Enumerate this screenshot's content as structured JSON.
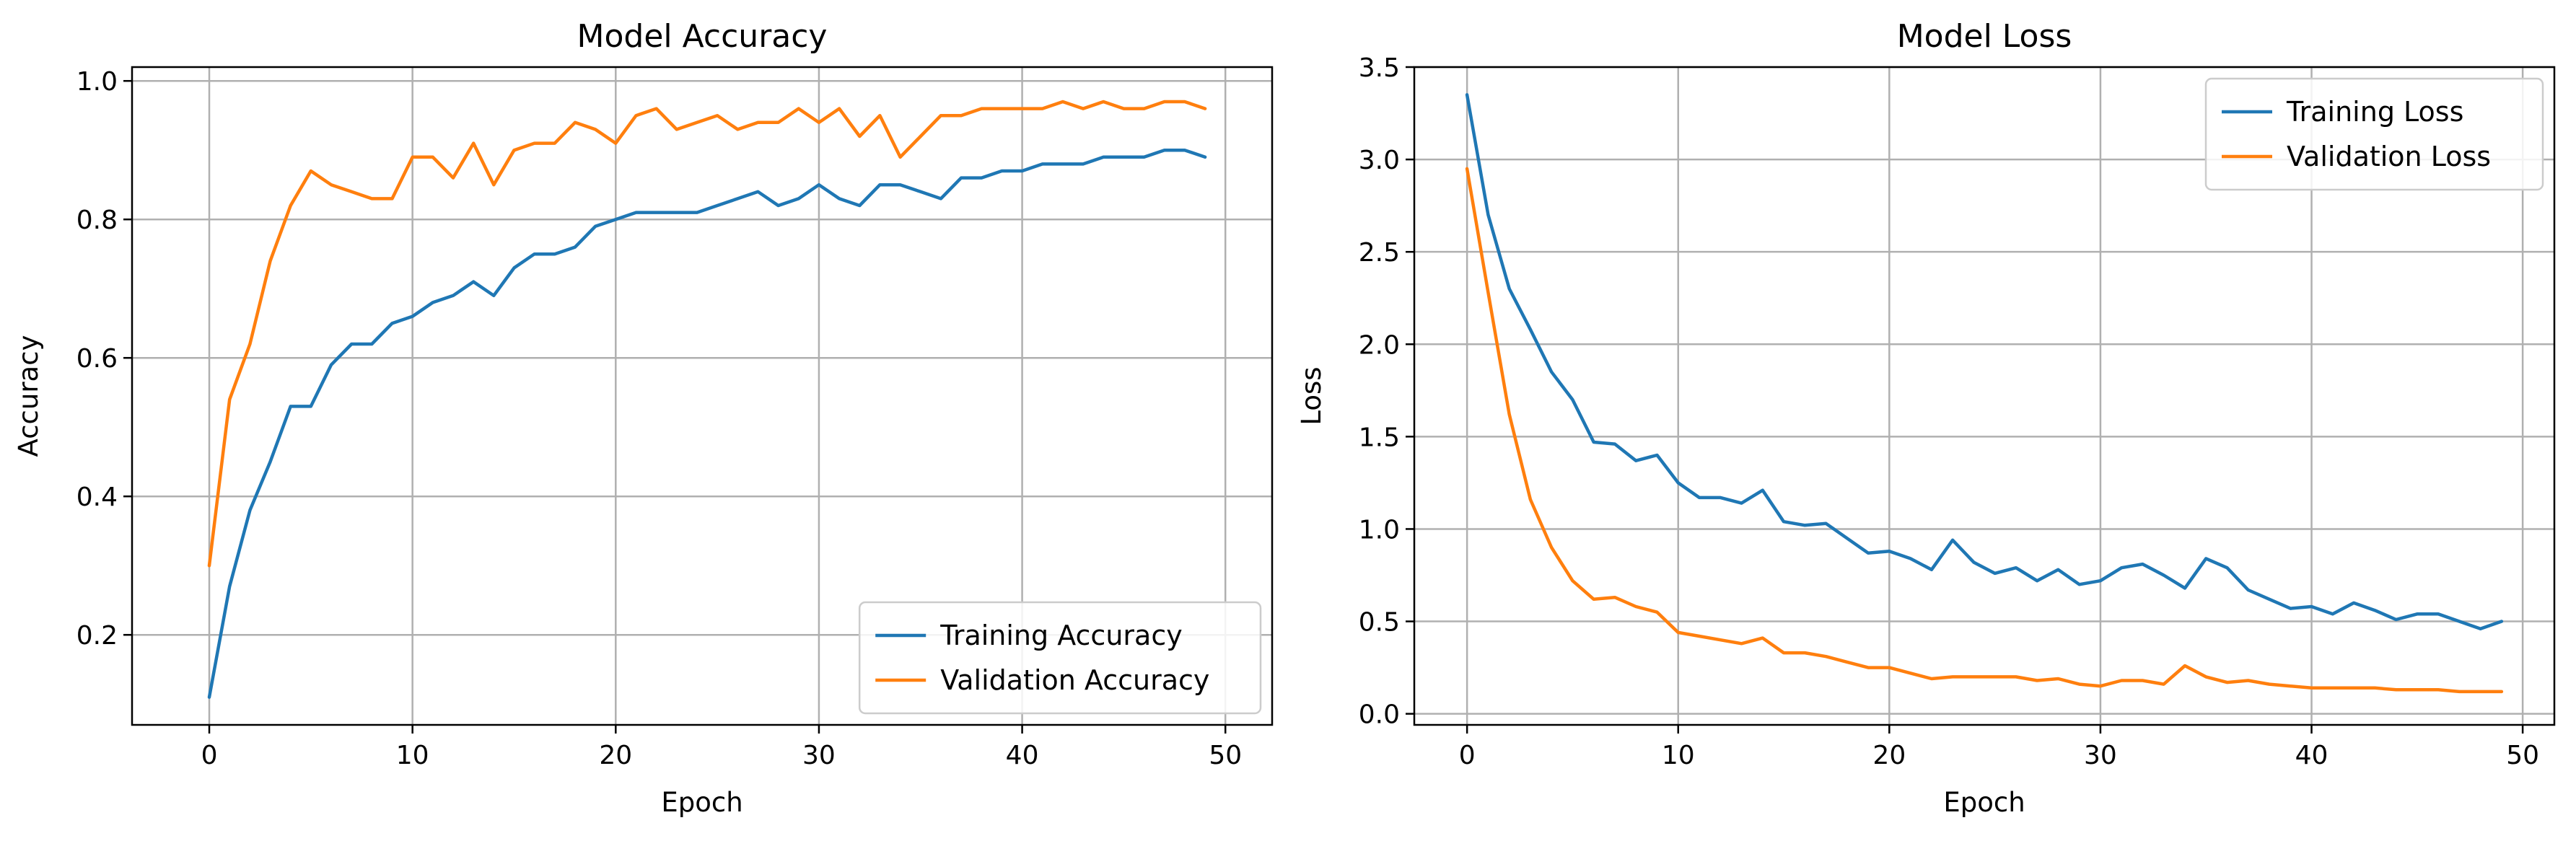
{
  "chart_data": [
    {
      "type": "line",
      "title": "Model Accuracy",
      "xlabel": "Epoch",
      "ylabel": "Accuracy",
      "xlim": [
        -3.8,
        52.3
      ],
      "ylim": [
        0.07,
        1.02
      ],
      "xticks": [
        0,
        10,
        20,
        30,
        40,
        50
      ],
      "yticks": [
        0.2,
        0.4,
        0.6,
        0.8,
        1.0
      ],
      "ytick_labels": [
        "0.2",
        "0.4",
        "0.6",
        "0.8",
        "1.0"
      ],
      "grid": true,
      "legend_position": "lower-right",
      "x": [
        0,
        1,
        2,
        3,
        4,
        5,
        6,
        7,
        8,
        9,
        10,
        11,
        12,
        13,
        14,
        15,
        16,
        17,
        18,
        19,
        20,
        21,
        22,
        23,
        24,
        25,
        26,
        27,
        28,
        29,
        30,
        31,
        32,
        33,
        34,
        35,
        36,
        37,
        38,
        39,
        40,
        41,
        42,
        43,
        44,
        45,
        46,
        47,
        48,
        49
      ],
      "series": [
        {
          "name": "Training Accuracy",
          "color": "#1f77b4",
          "values": [
            0.11,
            0.27,
            0.38,
            0.45,
            0.53,
            0.53,
            0.59,
            0.62,
            0.62,
            0.65,
            0.66,
            0.68,
            0.69,
            0.71,
            0.69,
            0.73,
            0.75,
            0.75,
            0.76,
            0.79,
            0.8,
            0.81,
            0.81,
            0.81,
            0.81,
            0.82,
            0.83,
            0.84,
            0.82,
            0.83,
            0.85,
            0.83,
            0.82,
            0.85,
            0.85,
            0.84,
            0.83,
            0.86,
            0.86,
            0.87,
            0.87,
            0.88,
            0.88,
            0.88,
            0.89,
            0.89,
            0.89,
            0.9,
            0.9,
            0.89
          ]
        },
        {
          "name": "Validation Accuracy",
          "color": "#ff7f0e",
          "values": [
            0.3,
            0.54,
            0.62,
            0.74,
            0.82,
            0.87,
            0.85,
            0.84,
            0.83,
            0.83,
            0.89,
            0.89,
            0.86,
            0.91,
            0.85,
            0.9,
            0.91,
            0.91,
            0.94,
            0.93,
            0.91,
            0.95,
            0.96,
            0.93,
            0.94,
            0.95,
            0.93,
            0.94,
            0.94,
            0.96,
            0.94,
            0.96,
            0.92,
            0.95,
            0.89,
            0.92,
            0.95,
            0.95,
            0.96,
            0.96,
            0.96,
            0.96,
            0.97,
            0.96,
            0.97,
            0.96,
            0.96,
            0.97,
            0.97,
            0.96
          ]
        }
      ]
    },
    {
      "type": "line",
      "title": "Model Loss",
      "xlabel": "Epoch",
      "ylabel": "Loss",
      "xlim": [
        -2.5,
        51.5
      ],
      "ylim": [
        -0.06,
        3.5
      ],
      "xticks": [
        0,
        10,
        20,
        30,
        40,
        50
      ],
      "yticks": [
        0.0,
        0.5,
        1.0,
        1.5,
        2.0,
        2.5,
        3.0,
        3.5
      ],
      "ytick_labels": [
        "0.0",
        "0.5",
        "1.0",
        "1.5",
        "2.0",
        "2.5",
        "3.0",
        "3.5"
      ],
      "grid": true,
      "legend_position": "upper-right",
      "x": [
        0,
        1,
        2,
        3,
        4,
        5,
        6,
        7,
        8,
        9,
        10,
        11,
        12,
        13,
        14,
        15,
        16,
        17,
        18,
        19,
        20,
        21,
        22,
        23,
        24,
        25,
        26,
        27,
        28,
        29,
        30,
        31,
        32,
        33,
        34,
        35,
        36,
        37,
        38,
        39,
        40,
        41,
        42,
        43,
        44,
        45,
        46,
        47,
        48,
        49
      ],
      "series": [
        {
          "name": "Training Loss",
          "color": "#1f77b4",
          "values": [
            3.35,
            2.7,
            2.3,
            2.08,
            1.85,
            1.7,
            1.47,
            1.46,
            1.37,
            1.4,
            1.25,
            1.17,
            1.17,
            1.14,
            1.21,
            1.04,
            1.02,
            1.03,
            0.95,
            0.87,
            0.88,
            0.84,
            0.78,
            0.94,
            0.82,
            0.76,
            0.79,
            0.72,
            0.78,
            0.7,
            0.72,
            0.79,
            0.81,
            0.75,
            0.68,
            0.84,
            0.79,
            0.67,
            0.62,
            0.57,
            0.58,
            0.54,
            0.6,
            0.56,
            0.51,
            0.54,
            0.54,
            0.5,
            0.46,
            0.5
          ]
        },
        {
          "name": "Validation Loss",
          "color": "#ff7f0e",
          "values": [
            2.95,
            2.28,
            1.62,
            1.16,
            0.9,
            0.72,
            0.62,
            0.63,
            0.58,
            0.55,
            0.44,
            0.42,
            0.4,
            0.38,
            0.41,
            0.33,
            0.33,
            0.31,
            0.28,
            0.25,
            0.25,
            0.22,
            0.19,
            0.2,
            0.2,
            0.2,
            0.2,
            0.18,
            0.19,
            0.16,
            0.15,
            0.18,
            0.18,
            0.16,
            0.26,
            0.2,
            0.17,
            0.18,
            0.16,
            0.15,
            0.14,
            0.14,
            0.14,
            0.14,
            0.13,
            0.13,
            0.13,
            0.12,
            0.12,
            0.12
          ]
        }
      ]
    }
  ]
}
